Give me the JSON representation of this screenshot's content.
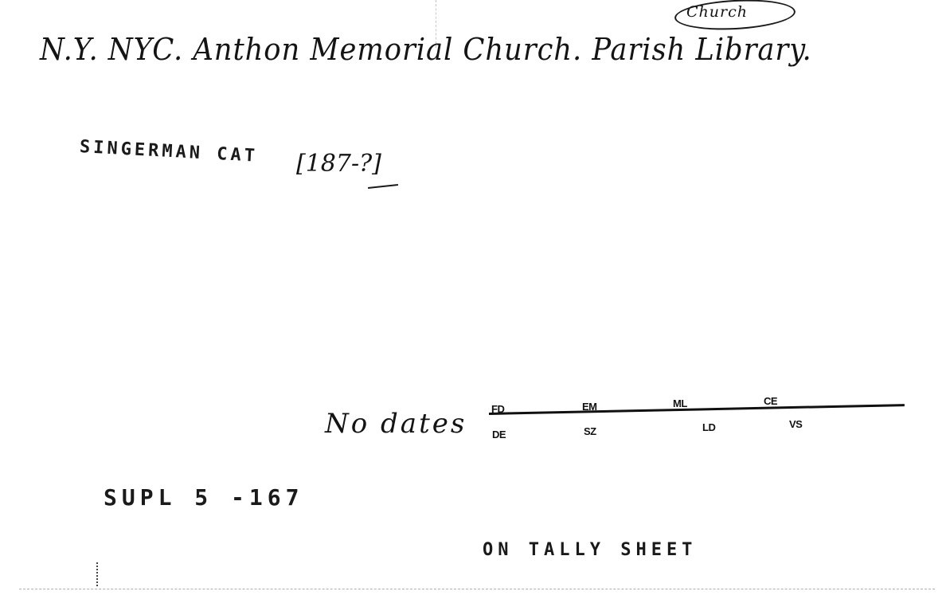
{
  "card": {
    "heading": "N.Y. NYC. Anthon Memorial Church. Parish Library.",
    "category_note": "Church",
    "catalog_label": "SINGERMAN CAT",
    "catalog_date": "[187-?]",
    "no_dates_note": "No dates",
    "codes_top": [
      "FD",
      "EM",
      "ML",
      "CE"
    ],
    "codes_bottom": [
      "DE",
      "SZ",
      "LD",
      "VS"
    ],
    "supplement": "SUPL 5 -167",
    "tally_note": "ON TALLY SHEET"
  }
}
